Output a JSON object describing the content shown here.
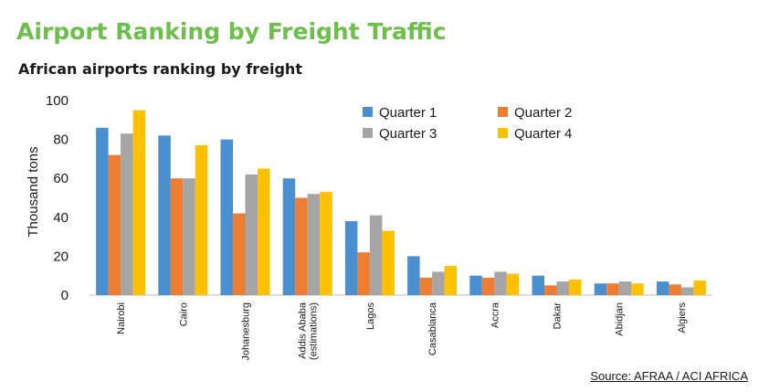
{
  "page": {
    "title": "Airport Ranking by Freight Traffic",
    "subtitle": "African airports ranking by freight",
    "source": "Source: AFRAA / ACI AFRICA"
  },
  "chart_data": {
    "type": "bar",
    "title": "",
    "xlabel": "",
    "ylabel": "Thousand tons",
    "ylim": [
      0,
      100
    ],
    "yticks": [
      0,
      20,
      40,
      60,
      80,
      100
    ],
    "grid": false,
    "legend_position": "top-right",
    "categories": [
      [
        "Nairobi"
      ],
      [
        "Cairo"
      ],
      [
        "Johanesburg"
      ],
      [
        "Addis Ababa",
        "(estimations)"
      ],
      [
        "Lagos"
      ],
      [
        "Casablanca"
      ],
      [
        "Accra"
      ],
      [
        "Dakar"
      ],
      [
        "Abidjan"
      ],
      [
        "Algiers"
      ]
    ],
    "series": [
      {
        "name": "Quarter 1",
        "color": "#4a90d0",
        "values": [
          86,
          82,
          80,
          60,
          38,
          20,
          10,
          10,
          6,
          7
        ]
      },
      {
        "name": "Quarter 2",
        "color": "#ed7d31",
        "values": [
          72,
          60,
          42,
          50,
          22,
          9,
          9,
          5,
          6,
          5.5
        ]
      },
      {
        "name": "Quarter 3",
        "color": "#a5a5a5",
        "values": [
          83,
          60,
          62,
          52,
          41,
          12,
          12,
          7,
          7,
          4
        ]
      },
      {
        "name": "Quarter 4",
        "color": "#ffc000",
        "values": [
          95,
          77,
          65,
          53,
          33,
          15,
          11,
          8,
          6,
          7.5
        ]
      }
    ]
  }
}
